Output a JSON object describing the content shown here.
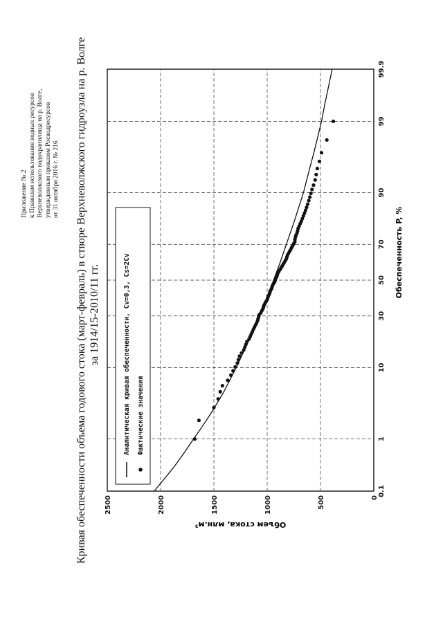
{
  "header_note": [
    "Приложение № 2",
    "к Правилам использования водных ресурсов",
    "Верхневолжского водохранилища на р. Волге,",
    "утвержденным приказом Росводресурсов",
    "от 31 октября 2016 г. № 216"
  ],
  "title_lines": [
    "Кривая обеспеченности объема годового стока (март-февраль) в створе Верхневолжского гидроузла на р. Волге",
    "за 1914/15-2010/11 гг."
  ],
  "chart_data": {
    "type": "scatter",
    "xlabel": "Обеспеченность P, %",
    "ylabel": "Объем стока, млн.м³",
    "x_scale": "probability",
    "x_ticks": [
      "0.1",
      "1",
      "10",
      "30",
      "50",
      "70",
      "90",
      "99",
      "99.9"
    ],
    "y_ticks": [
      "0",
      "500",
      "1000",
      "1500",
      "2000",
      "2500"
    ],
    "ylim": [
      0,
      2500
    ],
    "xlim": [
      0.1,
      99.9
    ],
    "grid": true,
    "legend_position": "top-left",
    "series": [
      {
        "name": "Аналитическая кривая обеспеченности, Cv=0,3, Cs=2Cv",
        "kind": "line",
        "x": [
          0.1,
          0.3,
          0.5,
          1,
          2,
          3,
          5,
          10,
          20,
          30,
          40,
          50,
          60,
          70,
          80,
          90,
          95,
          97,
          99,
          99.5,
          99.9
        ],
        "y": [
          2060,
          1880,
          1800,
          1690,
          1570,
          1500,
          1410,
          1290,
          1160,
          1070,
          1000,
          940,
          880,
          820,
          750,
          660,
          600,
          560,
          490,
          460,
          390
        ]
      },
      {
        "name": "Фактические значения",
        "kind": "points",
        "x": [
          1.0,
          2.0,
          3.1,
          4.1,
          5.1,
          6.1,
          7.1,
          8.2,
          9.2,
          10.2,
          11.2,
          12.2,
          13.3,
          14.3,
          15.3,
          16.3,
          17.3,
          18.4,
          19.4,
          20.4,
          21.4,
          22.4,
          23.5,
          24.5,
          25.5,
          26.5,
          27.6,
          28.6,
          29.6,
          30.6,
          31.6,
          32.7,
          33.7,
          34.7,
          35.7,
          36.7,
          37.8,
          38.8,
          39.8,
          40.8,
          41.8,
          42.9,
          43.9,
          44.9,
          45.9,
          46.9,
          48.0,
          49.0,
          50.0,
          51.0,
          52.0,
          53.1,
          54.1,
          55.1,
          56.1,
          57.1,
          58.2,
          59.2,
          60.2,
          61.2,
          62.2,
          63.3,
          64.3,
          65.3,
          66.3,
          67.3,
          68.4,
          69.4,
          70.4,
          71.4,
          72.4,
          73.5,
          74.5,
          75.5,
          76.5,
          77.6,
          78.6,
          79.6,
          80.6,
          81.6,
          82.7,
          83.7,
          84.7,
          85.7,
          86.7,
          87.8,
          88.8,
          89.8,
          90.8,
          91.8,
          92.9,
          93.9,
          94.9,
          95.9,
          96.9,
          98.0,
          99.0
        ],
        "y": [
          1680,
          1640,
          1500,
          1460,
          1440,
          1420,
          1370,
          1340,
          1320,
          1300,
          1280,
          1270,
          1260,
          1240,
          1220,
          1210,
          1200,
          1190,
          1170,
          1160,
          1150,
          1140,
          1130,
          1120,
          1110,
          1100,
          1090,
          1085,
          1080,
          1075,
          1060,
          1050,
          1040,
          1035,
          1030,
          1020,
          1010,
          1000,
          995,
          990,
          980,
          975,
          970,
          960,
          955,
          950,
          940,
          930,
          925,
          920,
          910,
          905,
          900,
          890,
          880,
          870,
          860,
          850,
          840,
          830,
          820,
          815,
          810,
          800,
          790,
          780,
          770,
          760,
          750,
          740,
          740,
          735,
          730,
          720,
          715,
          710,
          700,
          690,
          680,
          670,
          660,
          650,
          640,
          630,
          620,
          610,
          600,
          590,
          580,
          565,
          550,
          540,
          530,
          510,
          490,
          440,
          380
        ]
      }
    ]
  }
}
